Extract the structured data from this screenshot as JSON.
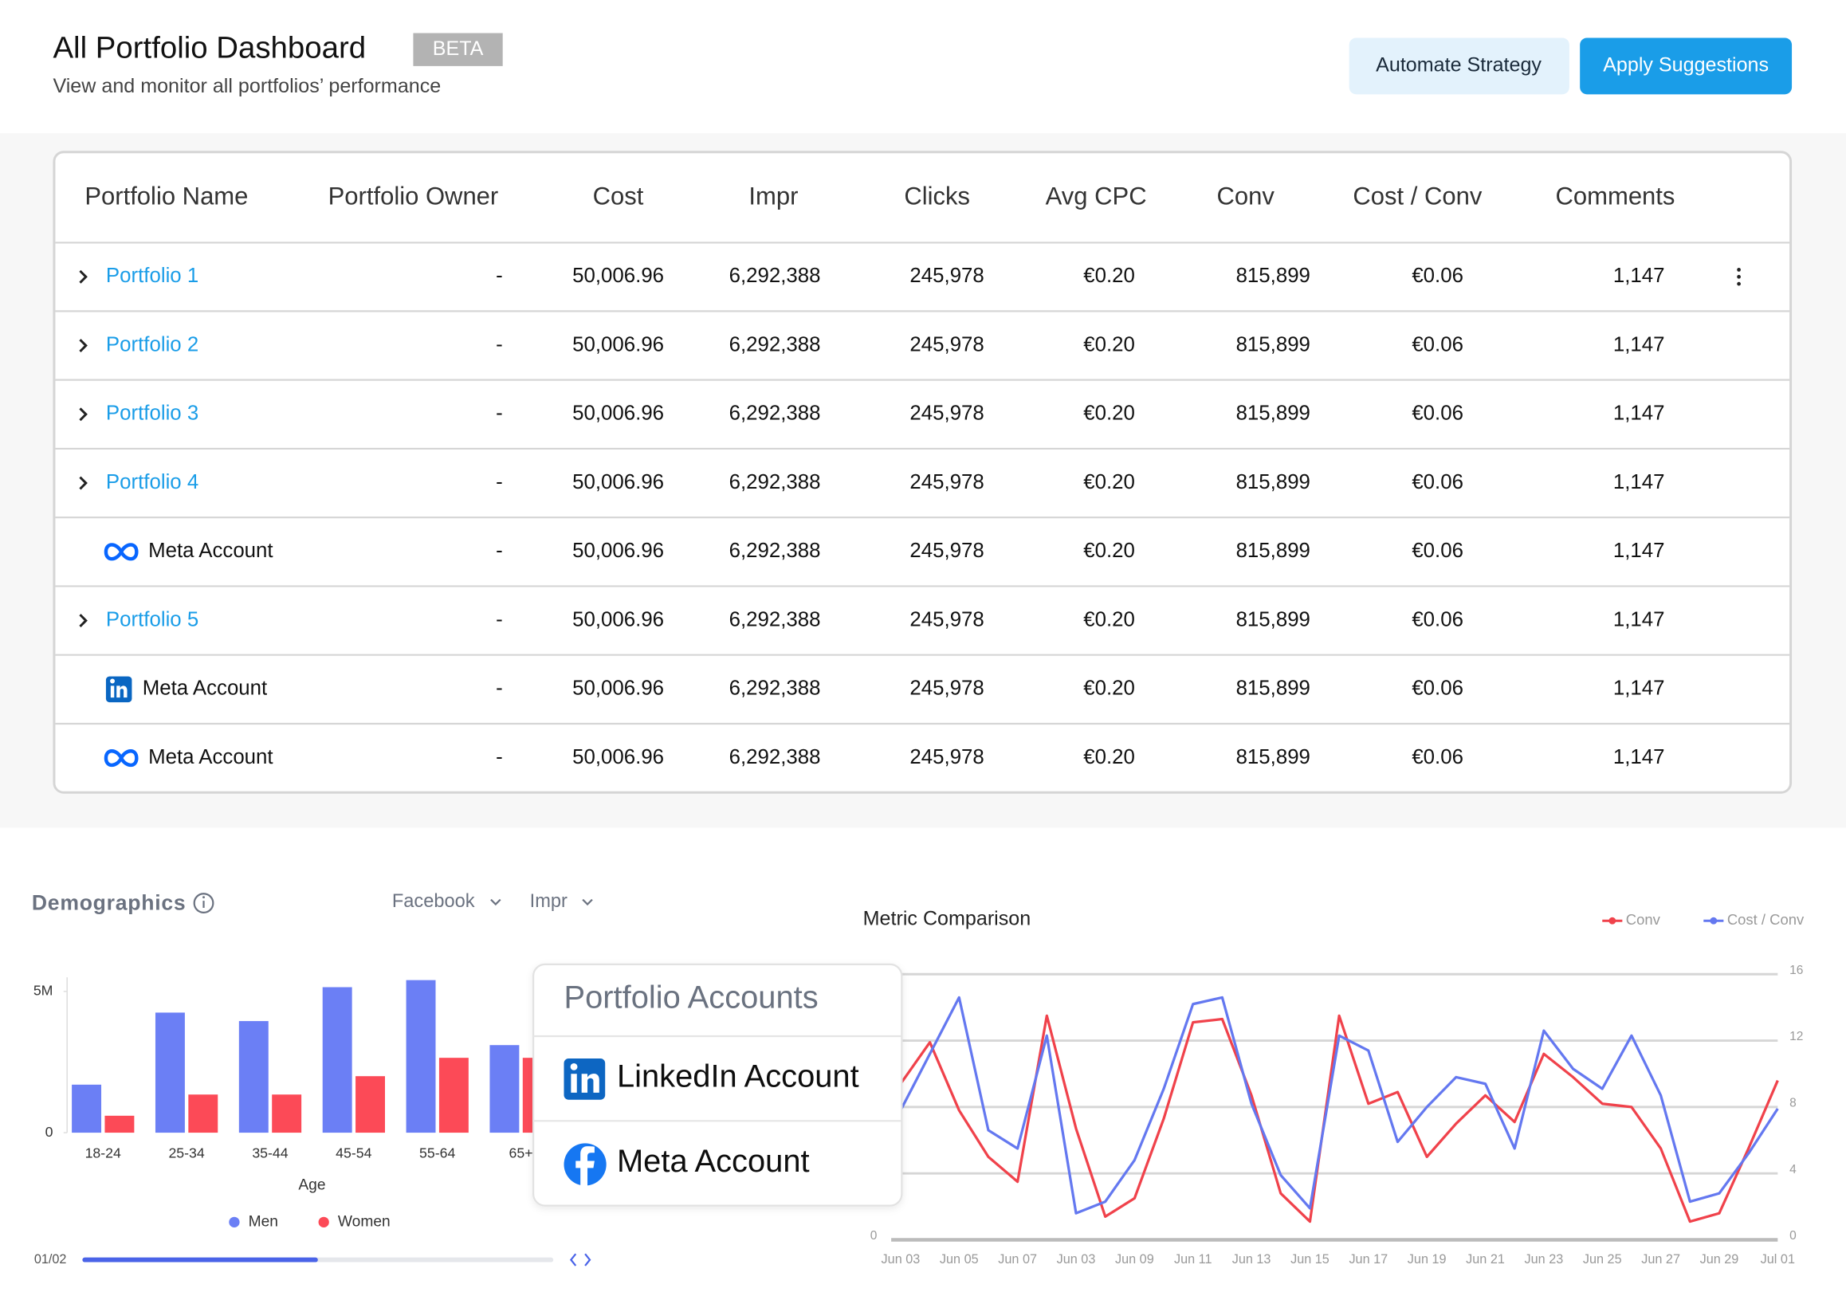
{
  "header": {
    "title": "All Portfolio Dashboard",
    "badge": "BETA",
    "subtitle": "View and monitor all portfolios’ performance",
    "buttons": [
      "Automate Strategy",
      "Apply Suggestions"
    ]
  },
  "table": {
    "columns": [
      "Portfolio Name",
      "Portfolio Owner",
      "Cost",
      "Impr",
      "Clicks",
      "Avg CPC",
      "Conv",
      "Cost / Conv",
      "Comments"
    ],
    "rows": [
      [
        "Portfolio 1",
        "-",
        "50,006.96",
        "6,292,388",
        "245,978",
        "€0.20",
        "815,899",
        "€0.06",
        "1,147"
      ],
      [
        "Portfolio 2",
        "-",
        "50,006.96",
        "6,292,388",
        "245,978",
        "€0.20",
        "815,899",
        "€0.06",
        "1,147"
      ],
      [
        "Portfolio 3",
        "-",
        "50,006.96",
        "6,292,388",
        "245,978",
        "€0.20",
        "815,899",
        "€0.06",
        "1,147"
      ],
      [
        "Portfolio 4",
        "-",
        "50,006.96",
        "6,292,388",
        "245,978",
        "€0.20",
        "815,899",
        "€0.06",
        "1,147"
      ],
      [
        "Meta Account",
        "-",
        "50,006.96",
        "6,292,388",
        "245,978",
        "€0.20",
        "815,899",
        "€0.06",
        "1,147"
      ],
      [
        "Portfolio 5",
        "-",
        "50,006.96",
        "6,292,388",
        "245,978",
        "€0.20",
        "815,899",
        "€0.06",
        "1,147"
      ],
      [
        "Meta Account",
        "-",
        "50,006.96",
        "6,292,388",
        "245,978",
        "€0.20",
        "815,899",
        "€0.06",
        "1,147"
      ],
      [
        "Meta Account",
        "-",
        "50,006.96",
        "6,292,388",
        "245,978",
        "€0.20",
        "815,899",
        "€0.06",
        "1,147"
      ]
    ]
  },
  "controls": {
    "filters": [
      "Facebook",
      "Impr"
    ],
    "page": "01/02"
  },
  "popup": {
    "title": "Portfolio Accounts",
    "items": [
      "LinkedIn Account",
      "Meta Account"
    ]
  },
  "chart_data": [
    {
      "type": "bar",
      "title": "Demographics",
      "categories": [
        "18-24",
        "25-34",
        "35-44",
        "45-54",
        "55-64",
        "65+"
      ],
      "xlabel": "Age",
      "series": [
        {
          "name": "Men",
          "color": "#6b7ff5",
          "values": [
            1700000,
            4250000,
            3950000,
            5150000,
            5400000,
            3100000
          ]
        },
        {
          "name": "Women",
          "color": "#fc4a57",
          "values": [
            600000,
            1350000,
            1350000,
            2000000,
            2650000,
            2650000
          ]
        }
      ],
      "ylim": [
        0,
        5500000
      ],
      "yticks": [
        0,
        {
          "value": 5000000,
          "label": "5M"
        }
      ],
      "legend": "bottom"
    },
    {
      "type": "line",
      "title": "Metric Comparison",
      "categories": [
        "Jun 03",
        null,
        "Jun 05",
        null,
        "Jun 07",
        null,
        "Jun 03",
        null,
        "Jun 09",
        null,
        "Jun 11",
        null,
        "Jun 13",
        null,
        "Jun 15",
        null,
        "Jun 17",
        null,
        "Jun 19",
        null,
        "Jun 21",
        null,
        "Jun 23",
        null,
        "Jun 25",
        null,
        "Jun 27",
        null,
        "Jun 29",
        null,
        "Jul 01"
      ],
      "series": [
        {
          "name": "Conv",
          "color": "#f0424b",
          "values": [
            9.4,
            11.9,
            7.8,
            5.0,
            3.5,
            13.5,
            6.7,
            1.4,
            2.5,
            7.3,
            13.1,
            13.3,
            8.7,
            2.8,
            1.1,
            13.5,
            8.2,
            8.9,
            5.0,
            7.0,
            8.7,
            7.1,
            11.2,
            9.8,
            8.2,
            8.0,
            5.5,
            1.1,
            1.6,
            5.5,
            9.6
          ]
        },
        {
          "name": "Cost / Conv",
          "color": "#6478f0",
          "values": [
            7.8,
            11.2,
            14.6,
            6.6,
            5.5,
            12.3,
            1.6,
            2.3,
            4.8,
            9.1,
            14.2,
            14.6,
            8.2,
            3.9,
            1.9,
            12.3,
            11.4,
            5.9,
            8.0,
            9.8,
            9.4,
            5.5,
            12.6,
            10.3,
            9.1,
            12.3,
            8.7,
            2.3,
            2.8,
            5.2,
            7.9
          ]
        }
      ],
      "ylim": [
        0,
        16
      ],
      "yticks": [
        0
      ],
      "y2lim": [
        0,
        16
      ],
      "y2ticks": [
        0,
        4,
        8,
        12,
        16
      ],
      "grid": true,
      "legend": "top-right"
    }
  ]
}
